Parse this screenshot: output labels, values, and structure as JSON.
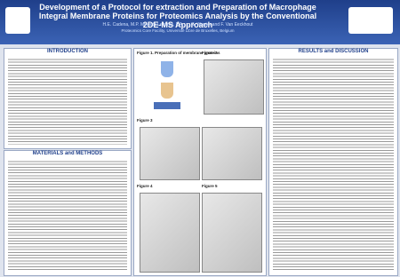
{
  "header": {
    "title": "Development of a Protocol for extraction and Preparation of Macrophage Integral Membrane Proteins for Proteomics Analysis by the Conventional 2DE-MS Approach",
    "authors": "H.E. Cadena, M.P. Mingote Lecaros, P.A. ..., G. Wuster and F. Van Eeckhout",
    "affiliation": "Proteomics Core Facility, Université Libre de Bruxelles, Belgium"
  },
  "sections": {
    "introduction": "INTRODUCTION",
    "methods": "MATERIALS and METHODS",
    "results": "RESULTS and DISCUSSION"
  },
  "figures": {
    "figure1": "Figure 1.  Preparation of membrane proteins",
    "figure2": "Figure 2",
    "figure3": "Figure 3",
    "figure4": "Figure 4",
    "figure5": "Figure 5"
  }
}
